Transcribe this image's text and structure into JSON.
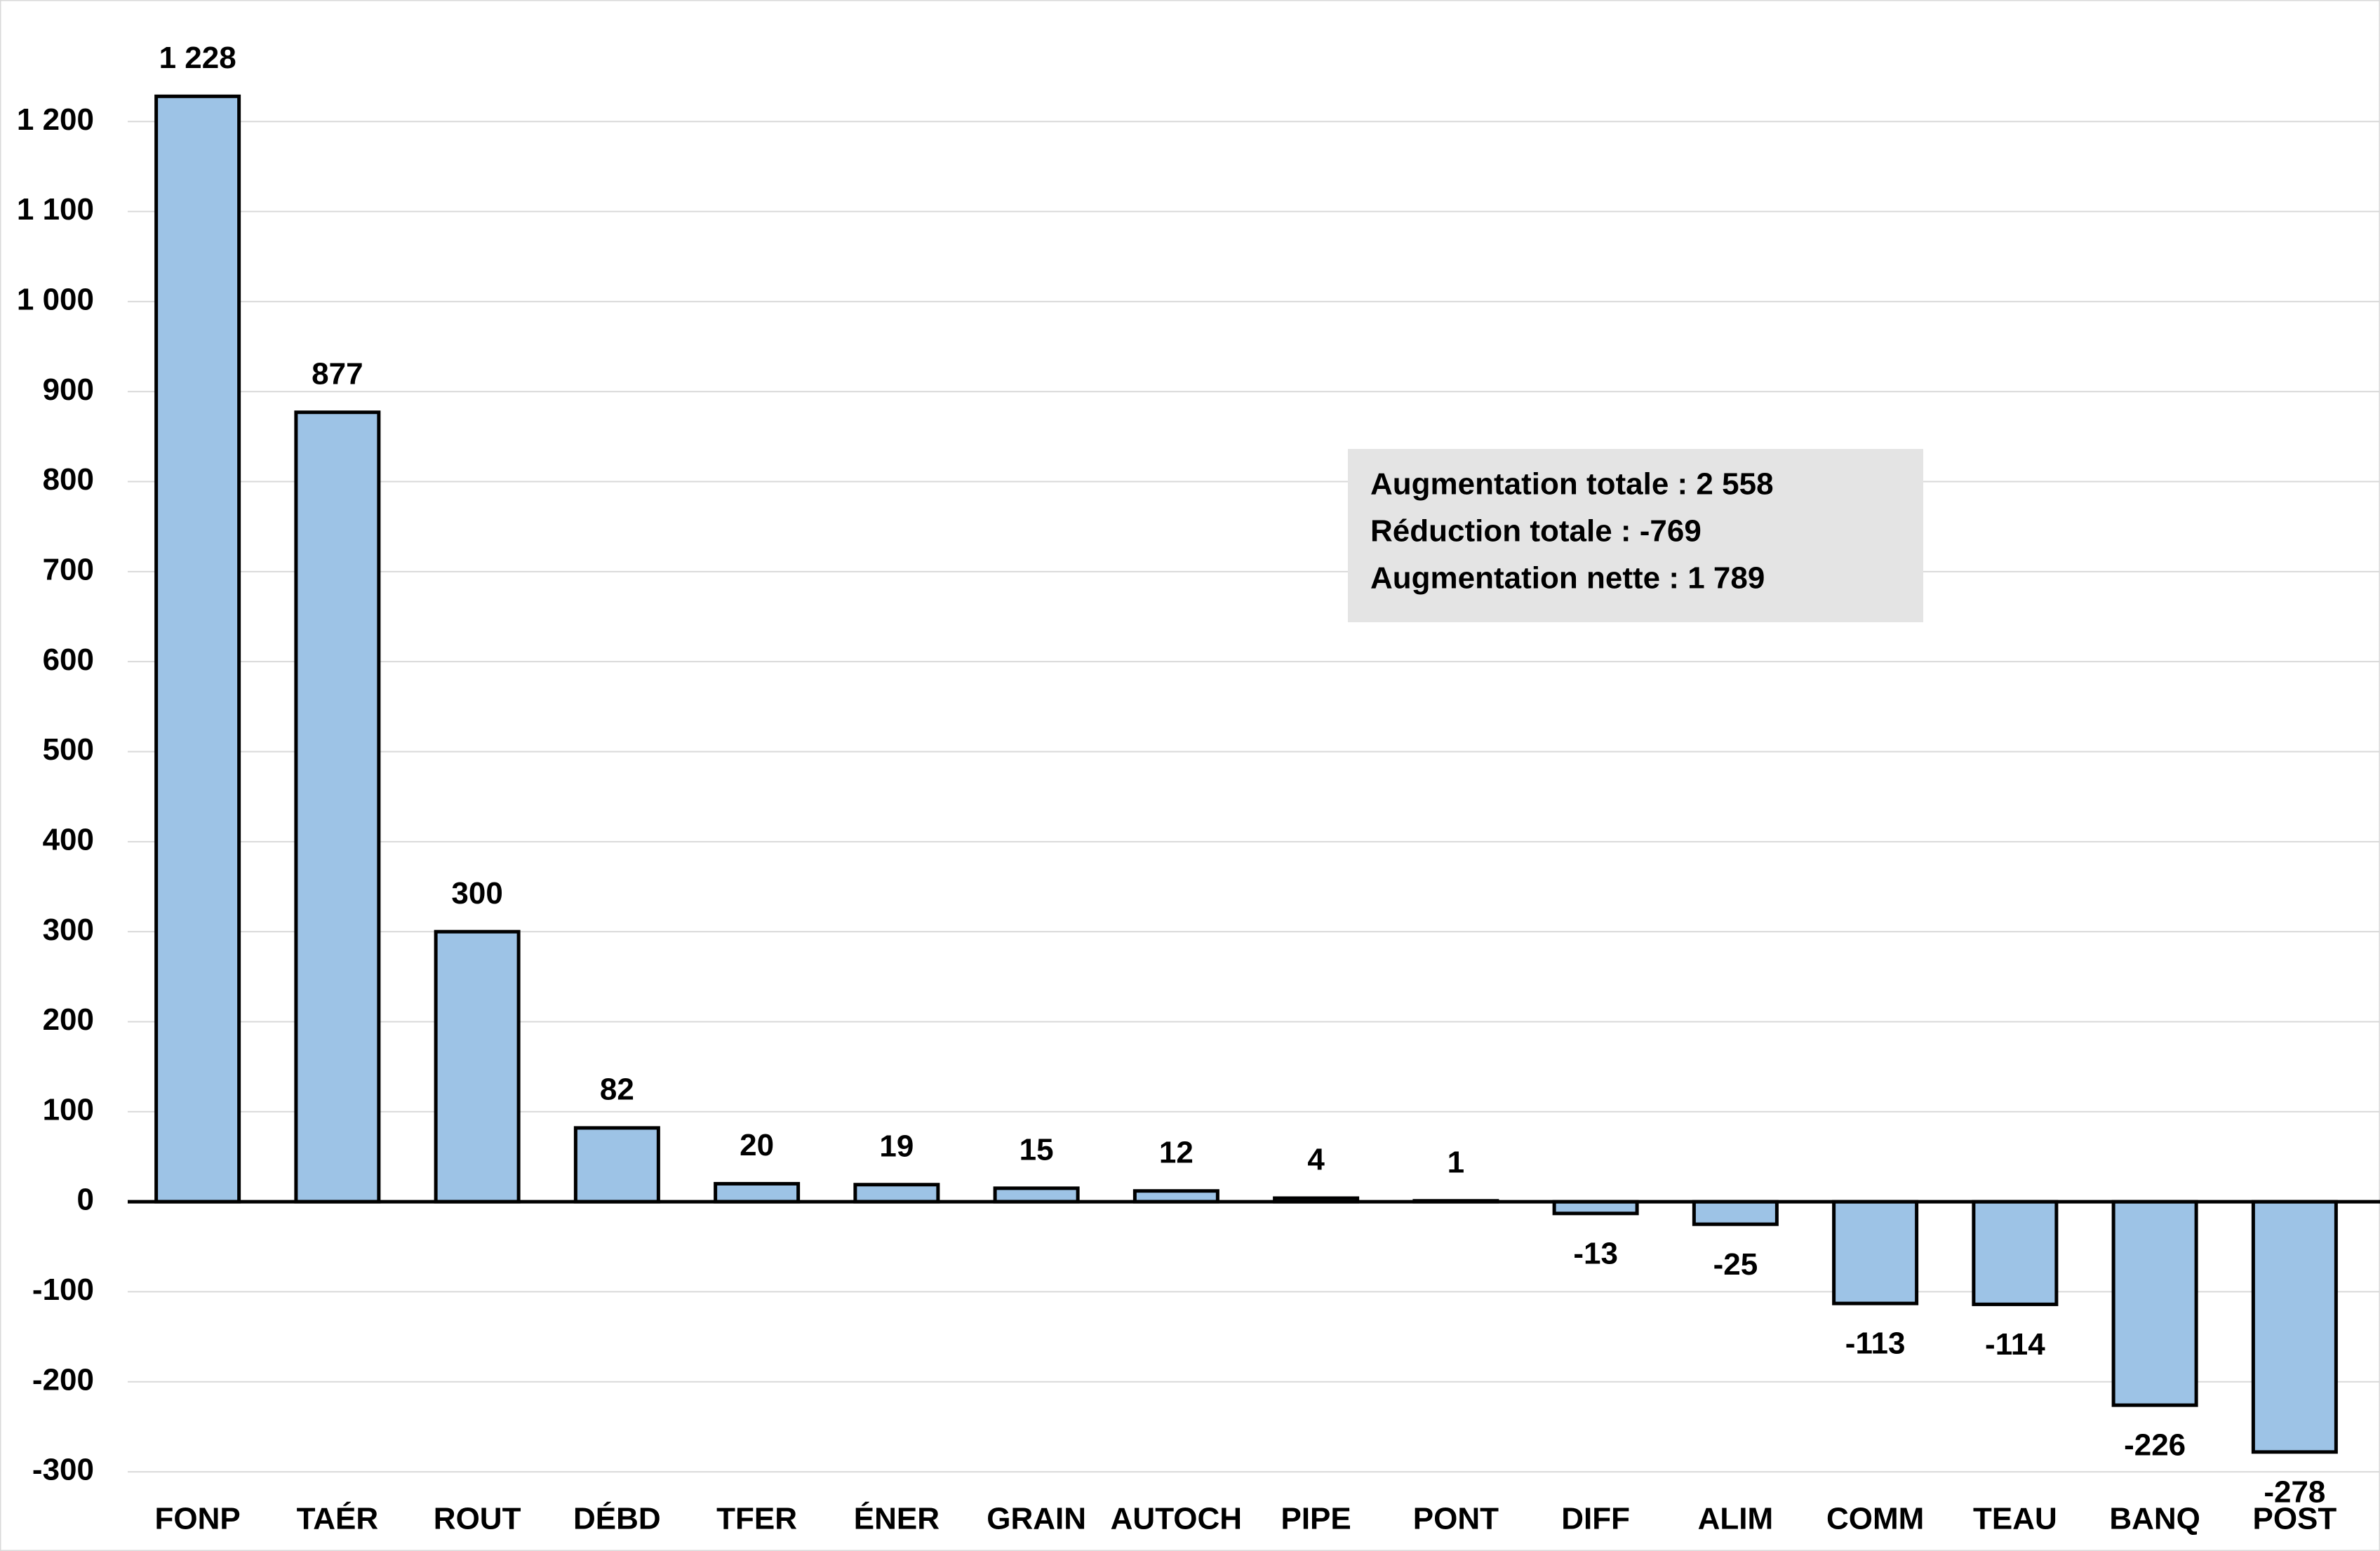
{
  "chart_data": {
    "type": "bar",
    "categories": [
      "FONP",
      "TAÉR",
      "ROUT",
      "DÉBD",
      "TFER",
      "ÉNER",
      "GRAIN",
      "AUTOCH",
      "PIPE",
      "PONT",
      "DIFF",
      "ALIM",
      "COMM",
      "TEAU",
      "BANQ",
      "POST"
    ],
    "values": [
      1228,
      877,
      300,
      82,
      20,
      19,
      15,
      12,
      4,
      1,
      -13,
      -25,
      -113,
      -114,
      -226,
      -278
    ],
    "value_labels": [
      "1 228",
      "877",
      "300",
      "82",
      "20",
      "19",
      "15",
      "12",
      "4",
      "1",
      "-13",
      "-25",
      "-113",
      "-114",
      "-226",
      "-278"
    ],
    "color": "#9dc3e6",
    "ylim": [
      -388,
      1335
    ],
    "yticks": [
      -300,
      -200,
      -100,
      0,
      100,
      200,
      300,
      400,
      500,
      600,
      700,
      800,
      900,
      {
        "value": 1000,
        "label": "1 000"
      },
      {
        "value": 1100,
        "label": "1 100"
      },
      {
        "value": 1200,
        "label": "1 200"
      }
    ],
    "grid": true,
    "annotation": [
      "Augmentation totale : 2 558",
      "Réduction totale : -769",
      "Augmentation nette : 1 789"
    ]
  }
}
